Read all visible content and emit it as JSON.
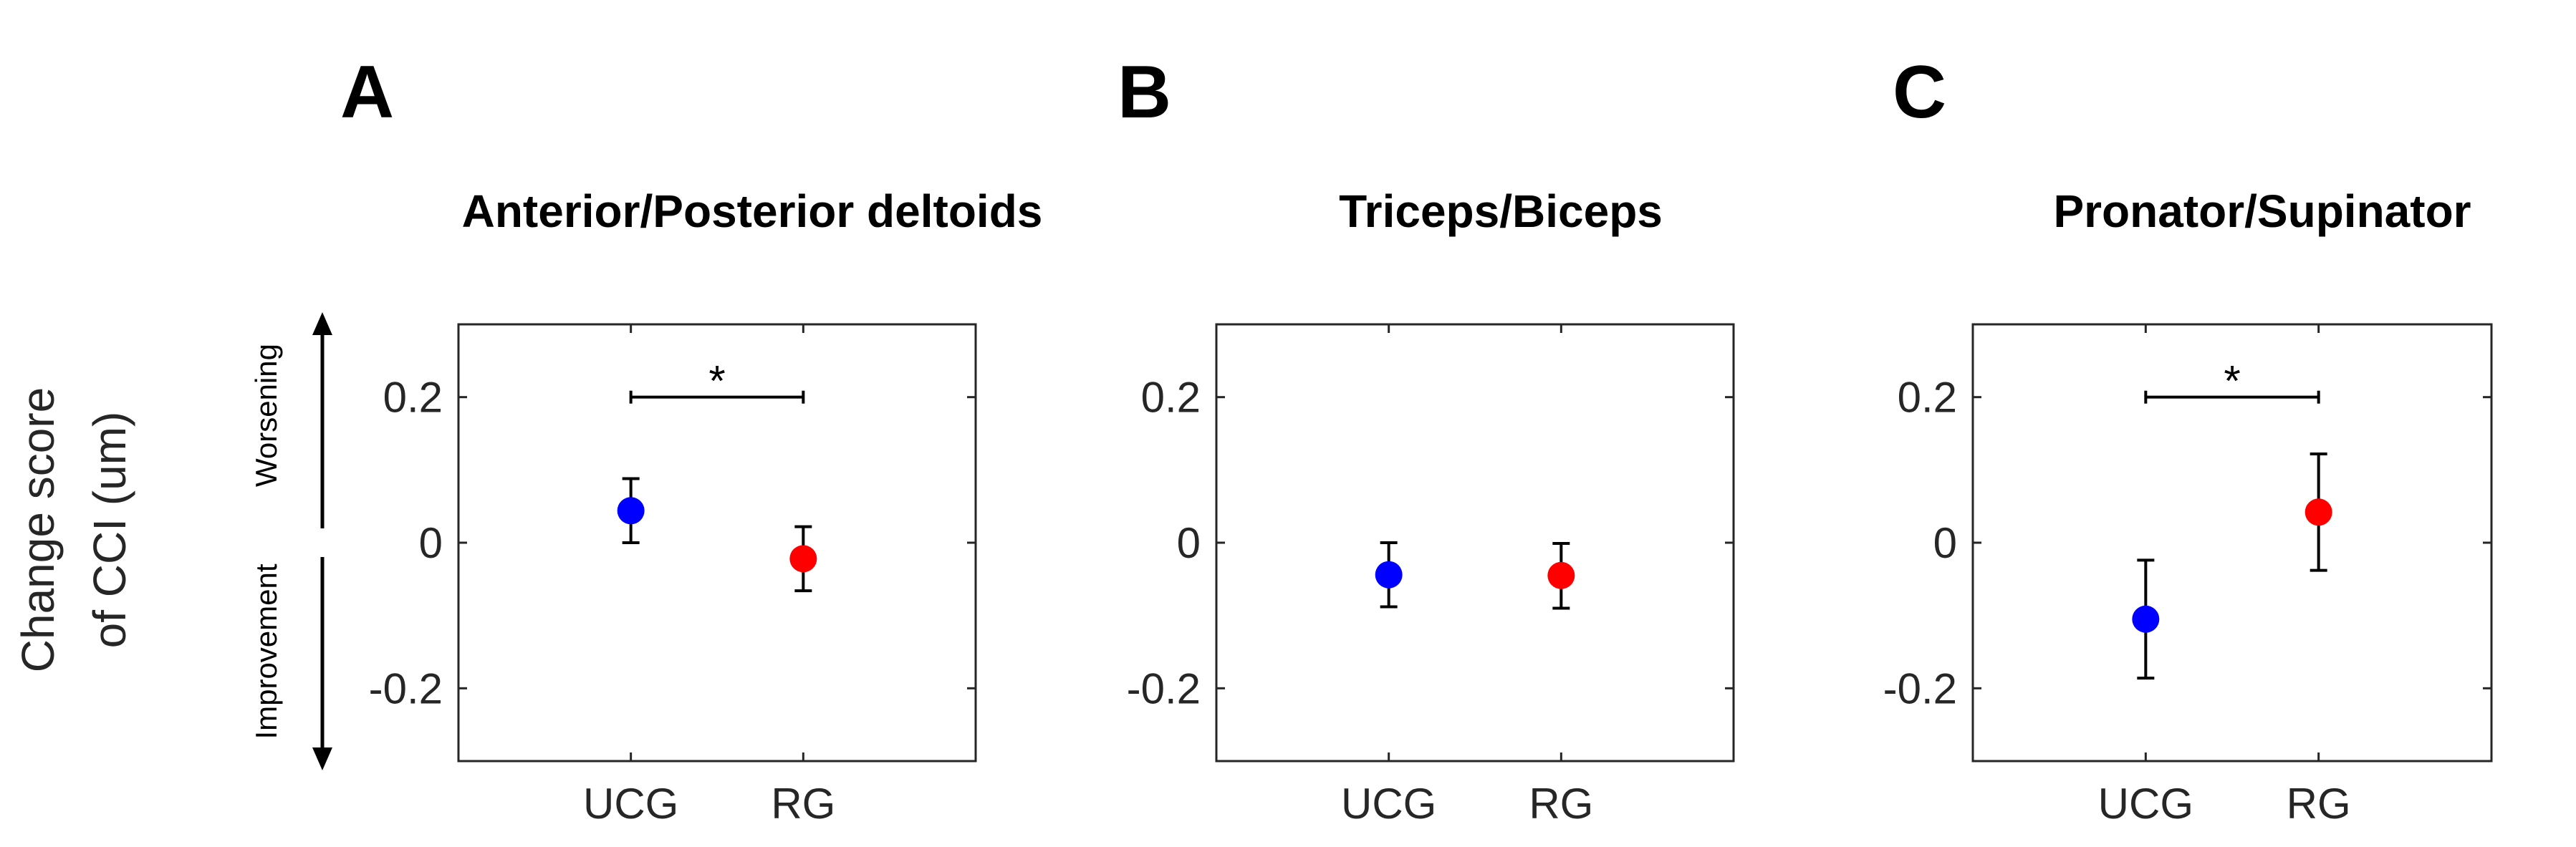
{
  "y_axis": {
    "label_line1": "Change score",
    "label_line2": "of CCI (um)",
    "worsening_label": "Worsening",
    "improvement_label": "Improvement"
  },
  "colors": {
    "UCG": "#0000ff",
    "RG": "#ff0000"
  },
  "chart_data": [
    {
      "type": "scatter",
      "panel": "A",
      "title": "Anterior/Posterior deltoids",
      "categories": [
        "UCG",
        "RG"
      ],
      "series": [
        {
          "name": "UCG",
          "value": 0.044,
          "err_low": 0.0,
          "err_high": 0.088,
          "color": "#0000ff"
        },
        {
          "name": "RG",
          "value": -0.022,
          "err_low": -0.066,
          "err_high": 0.022,
          "color": "#ff0000"
        }
      ],
      "ylim": [
        -0.3,
        0.3
      ],
      "yticks": [
        0.2,
        0,
        -0.2
      ],
      "ytick_labels": [
        "0.2",
        "0",
        "-0.2"
      ],
      "significance": {
        "from": "UCG",
        "to": "RG",
        "y": 0.2,
        "label": "*"
      }
    },
    {
      "type": "scatter",
      "panel": "B",
      "title": "Triceps/Biceps",
      "categories": [
        "UCG",
        "RG"
      ],
      "series": [
        {
          "name": "UCG",
          "value": -0.044,
          "err_low": -0.088,
          "err_high": 0.0,
          "color": "#0000ff"
        },
        {
          "name": "RG",
          "value": -0.045,
          "err_low": -0.09,
          "err_high": -0.001,
          "color": "#ff0000"
        }
      ],
      "ylim": [
        -0.3,
        0.3
      ],
      "yticks": [
        0.2,
        0,
        -0.2
      ],
      "ytick_labels": [
        "0.2",
        "0",
        "-0.2"
      ],
      "significance": null
    },
    {
      "type": "scatter",
      "panel": "C",
      "title": "Pronator/Supinator",
      "categories": [
        "UCG",
        "RG"
      ],
      "series": [
        {
          "name": "UCG",
          "value": -0.105,
          "err_low": -0.186,
          "err_high": -0.024,
          "color": "#0000ff"
        },
        {
          "name": "RG",
          "value": 0.042,
          "err_low": -0.038,
          "err_high": 0.122,
          "color": "#ff0000"
        }
      ],
      "ylim": [
        -0.3,
        0.3
      ],
      "yticks": [
        0.2,
        0,
        -0.2
      ],
      "ytick_labels": [
        "0.2",
        "0",
        "-0.2"
      ],
      "significance": {
        "from": "UCG",
        "to": "RG",
        "y": 0.2,
        "label": "*"
      }
    }
  ]
}
